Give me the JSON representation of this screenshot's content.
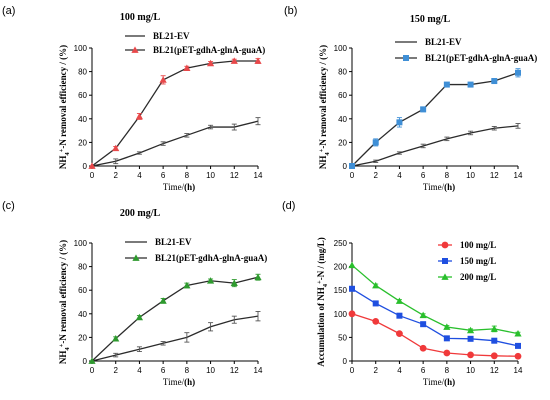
{
  "colors": {
    "ev": "#2b2b2b",
    "red": "#e8484a",
    "blue": "#3f8fd6",
    "green": "#2e9a2e",
    "d100": "#f0393a",
    "d150": "#1f4fe0",
    "d200": "#29bf2c",
    "err": "#555555"
  },
  "chart_data": [
    {
      "type": "line",
      "panel": "(a)",
      "title": "100 mg/L",
      "xlabel": "Time/(h)",
      "ylabel": "NH4+-N removal efficiency / (%)",
      "xlim": [
        0,
        14
      ],
      "ylim": [
        0,
        100
      ],
      "x_ticks": [
        0,
        2,
        4,
        6,
        8,
        10,
        12,
        14
      ],
      "y_ticks": [
        0,
        20,
        40,
        60,
        80,
        100
      ],
      "legend_position": "top-center",
      "series": [
        {
          "name": "BL21-EV",
          "marker": "none",
          "color_key": "ev",
          "x": [
            0,
            2,
            4,
            6,
            8,
            10,
            12,
            14
          ],
          "values": [
            0,
            4,
            11,
            19,
            26,
            33,
            33,
            38
          ],
          "errors": [
            0,
            2,
            1,
            1.5,
            1.5,
            1.5,
            2.5,
            3
          ]
        },
        {
          "name": "BL21(pET-gdhA-glnA-guaA)",
          "marker": "triangle",
          "color_key": "red",
          "x": [
            0,
            2,
            4,
            6,
            8,
            10,
            12,
            14
          ],
          "values": [
            0,
            15,
            42,
            73,
            83,
            87,
            89,
            89
          ],
          "errors": [
            0,
            1.5,
            2.5,
            3.5,
            1.5,
            1.5,
            1.5,
            2
          ]
        }
      ]
    },
    {
      "type": "line",
      "panel": "(b)",
      "title": "150 mg/L",
      "xlabel": "Time/(h)",
      "ylabel": "NH4+-N removal efficiency / (%)",
      "xlim": [
        0,
        14
      ],
      "ylim": [
        0,
        100
      ],
      "x_ticks": [
        0,
        2,
        4,
        6,
        8,
        10,
        12,
        14
      ],
      "y_ticks": [
        0,
        20,
        40,
        60,
        80,
        100
      ],
      "legend_position": "top-center",
      "series": [
        {
          "name": "BL21-EV",
          "marker": "none",
          "color_key": "ev",
          "x": [
            0,
            2,
            4,
            6,
            8,
            10,
            12,
            14
          ],
          "values": [
            0,
            4,
            11,
            17,
            23,
            28,
            32,
            34
          ],
          "errors": [
            0,
            1,
            1,
            1.5,
            1.5,
            1.5,
            1.5,
            2
          ]
        },
        {
          "name": "BL21(pET-gdhA-glnA-guaA)",
          "marker": "square",
          "color_key": "blue",
          "x": [
            0,
            2,
            4,
            6,
            8,
            10,
            12,
            14
          ],
          "values": [
            0,
            20,
            37,
            48,
            69,
            69,
            72,
            79
          ],
          "errors": [
            0,
            3,
            4,
            2,
            1.5,
            1.5,
            2,
            3.5
          ]
        }
      ]
    },
    {
      "type": "line",
      "panel": "(c)",
      "title": "200 mg/L",
      "xlabel": "Time/(h)",
      "ylabel": "NH4+-N removal efficiency / (%)",
      "xlim": [
        0,
        14
      ],
      "ylim": [
        0,
        100
      ],
      "x_ticks": [
        0,
        2,
        4,
        6,
        8,
        10,
        12,
        14
      ],
      "y_ticks": [
        0,
        20,
        40,
        60,
        80,
        100
      ],
      "legend_position": "top-center",
      "series": [
        {
          "name": "BL21-EV",
          "marker": "none",
          "color_key": "ev",
          "x": [
            0,
            2,
            4,
            6,
            8,
            10,
            12,
            14
          ],
          "values": [
            0,
            5,
            10,
            15,
            20,
            29,
            35,
            38
          ],
          "errors": [
            0,
            1.5,
            2,
            1.5,
            4,
            3.5,
            3,
            4
          ]
        },
        {
          "name": "BL21(pET-gdhA-glnA-guaA)",
          "marker": "triangle",
          "color_key": "green",
          "x": [
            0,
            2,
            4,
            6,
            8,
            10,
            12,
            14
          ],
          "values": [
            0,
            19,
            37,
            51,
            64,
            68,
            66,
            71
          ],
          "errors": [
            0,
            1.5,
            1.5,
            2,
            2,
            1.5,
            3,
            2.5
          ]
        }
      ]
    },
    {
      "type": "line",
      "panel": "(d)",
      "title": "",
      "xlabel": "Time/(h)",
      "ylabel": "Accumulation of NH4+-N / (mg/L)",
      "xlim": [
        0,
        14
      ],
      "ylim": [
        0,
        250
      ],
      "x_ticks": [
        0,
        2,
        4,
        6,
        8,
        10,
        12,
        14
      ],
      "y_ticks": [
        0,
        50,
        100,
        150,
        200,
        250
      ],
      "legend_position": "top-right",
      "series": [
        {
          "name": "100 mg/L",
          "marker": "circle",
          "color_key": "d100",
          "x": [
            0,
            2,
            4,
            6,
            8,
            10,
            12,
            14
          ],
          "values": [
            100,
            84,
            58,
            27,
            17,
            13,
            11,
            10
          ],
          "errors": [
            0,
            2,
            2,
            2,
            1,
            1,
            1,
            1
          ]
        },
        {
          "name": "150 mg/L",
          "marker": "square",
          "color_key": "d150",
          "x": [
            0,
            2,
            4,
            6,
            8,
            10,
            12,
            14
          ],
          "values": [
            153,
            122,
            96,
            78,
            48,
            47,
            43,
            32
          ],
          "errors": [
            0,
            2,
            2,
            2,
            2,
            2,
            2,
            2
          ]
        },
        {
          "name": "200 mg/L",
          "marker": "triangle",
          "color_key": "d200",
          "x": [
            0,
            2,
            4,
            6,
            8,
            10,
            12,
            14
          ],
          "values": [
            203,
            160,
            127,
            97,
            72,
            65,
            68,
            58
          ],
          "errors": [
            0,
            3,
            3,
            3,
            3,
            3,
            6,
            3
          ]
        }
      ]
    }
  ]
}
